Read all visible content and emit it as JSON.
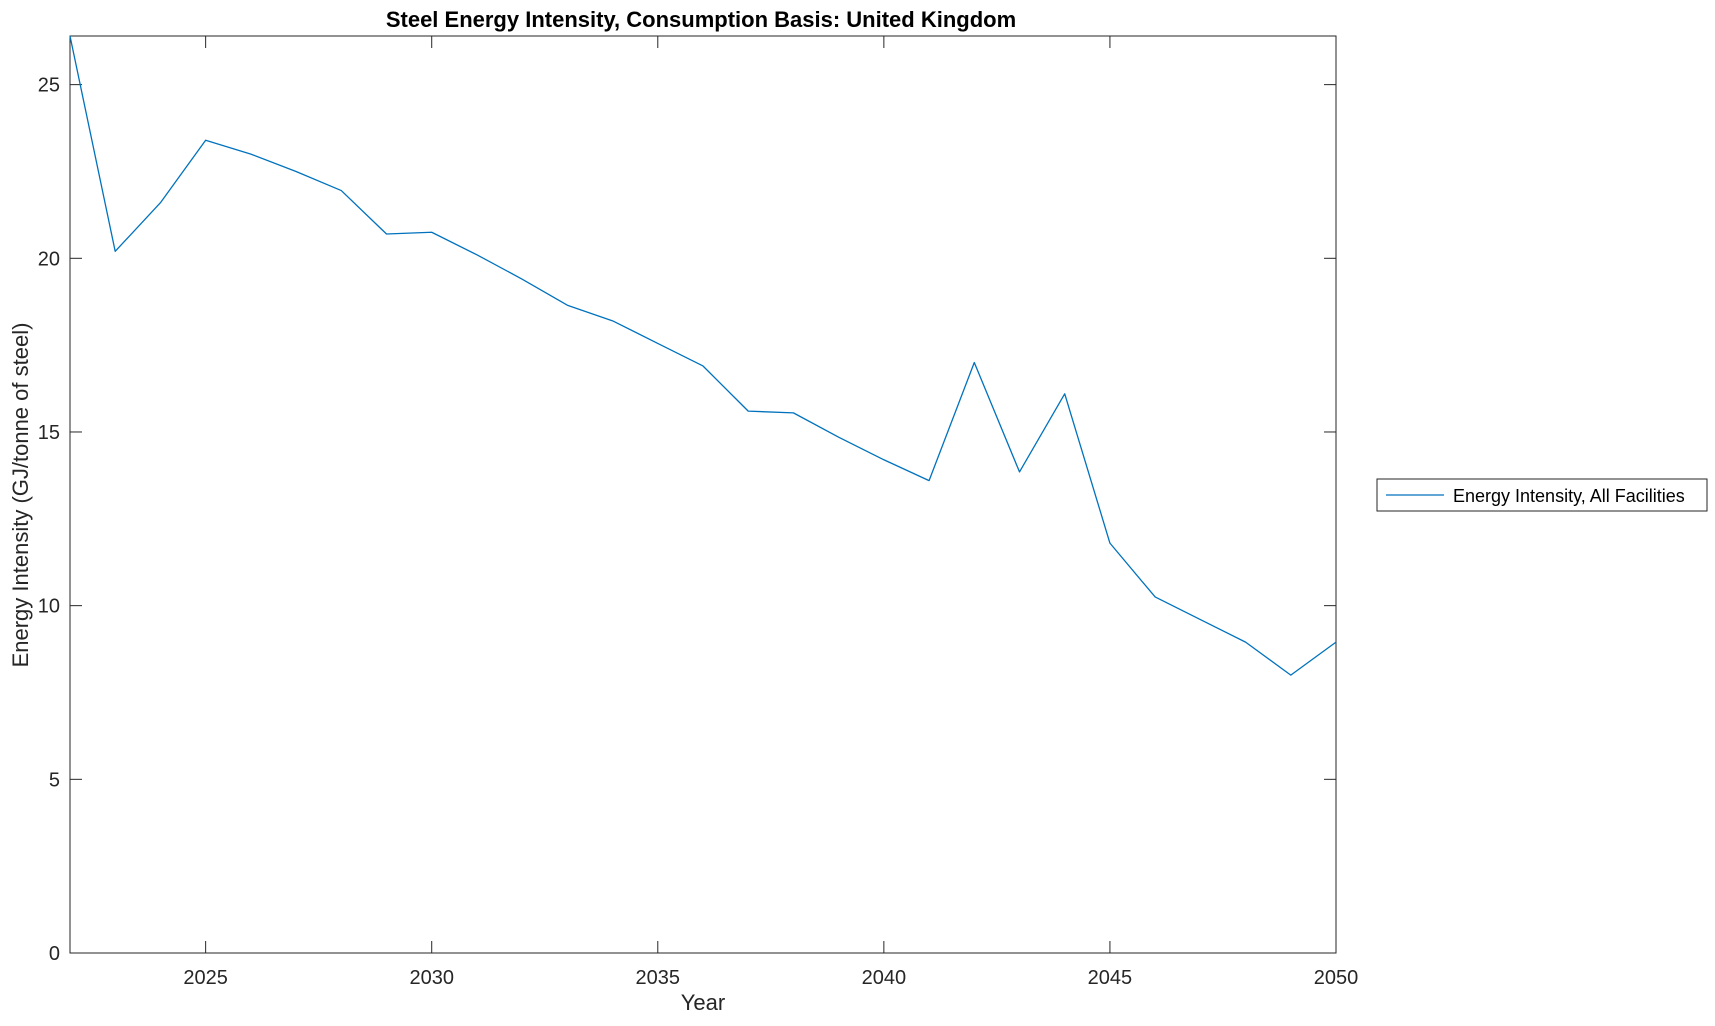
{
  "chart_data": {
    "type": "line",
    "title": "Steel Energy Intensity, Consumption Basis: United Kingdom",
    "xlabel": "Year",
    "ylabel": "Energy Intensity (GJ/tonne of steel)",
    "xlim": [
      2022,
      2050
    ],
    "ylim": [
      0,
      26.4
    ],
    "xticks": [
      2025,
      2030,
      2035,
      2040,
      2045,
      2050
    ],
    "yticks": [
      0,
      5,
      10,
      15,
      20,
      25
    ],
    "grid": false,
    "legend_position": "outside-right",
    "series": [
      {
        "name": "Energy Intensity, All Facilities",
        "color": "#0072BD",
        "x": [
          2022,
          2023,
          2024,
          2025,
          2026,
          2027,
          2028,
          2029,
          2030,
          2031,
          2032,
          2033,
          2034,
          2035,
          2036,
          2037,
          2038,
          2039,
          2040,
          2041,
          2042,
          2043,
          2044,
          2045,
          2046,
          2047,
          2048,
          2049,
          2050
        ],
        "y": [
          26.4,
          20.2,
          21.6,
          23.4,
          23.0,
          22.5,
          21.95,
          20.7,
          20.75,
          20.1,
          19.4,
          18.65,
          18.2,
          17.55,
          16.9,
          15.6,
          15.55,
          14.85,
          14.2,
          13.6,
          17.0,
          13.85,
          16.1,
          11.8,
          10.25,
          9.6,
          8.95,
          8.0,
          8.95
        ]
      }
    ]
  }
}
